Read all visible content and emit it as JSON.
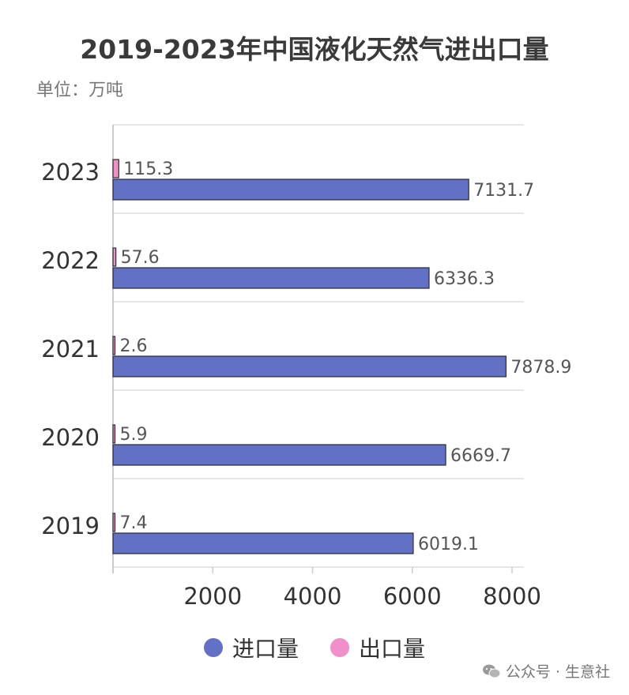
{
  "chart_data": {
    "type": "bar",
    "orientation": "horizontal",
    "title": "2019-2023年中国液化天然气进出口量",
    "unit_label": "单位：万吨",
    "categories": [
      "2023",
      "2022",
      "2021",
      "2020",
      "2019"
    ],
    "series": [
      {
        "name": "出口量",
        "color": "#f08fc8",
        "values": [
          115.3,
          57.6,
          2.6,
          5.9,
          7.4
        ],
        "labels": [
          "115.3",
          "57.6",
          "2.6",
          "5.9",
          "7.4"
        ]
      },
      {
        "name": "进口量",
        "color": "#6271c6",
        "values": [
          7131.7,
          6336.3,
          7878.9,
          6669.7,
          6019.1
        ],
        "labels": [
          "7131.7",
          "6336.3",
          "7878.9",
          "6669.7",
          "6019.1"
        ]
      }
    ],
    "xlim": [
      0,
      8000
    ],
    "x_ticks": [
      2000,
      4000,
      6000,
      8000
    ],
    "x_tick_labels": [
      "2000",
      "4000",
      "6000",
      "8000"
    ],
    "grid": true,
    "legend_position": "bottom"
  },
  "legend": [
    {
      "label": "进口量",
      "color": "#6271c6"
    },
    {
      "label": "出口量",
      "color": "#f08fc8"
    }
  ],
  "watermark": {
    "text": "公众号 · 生意社",
    "icon": "wechat-icon"
  }
}
